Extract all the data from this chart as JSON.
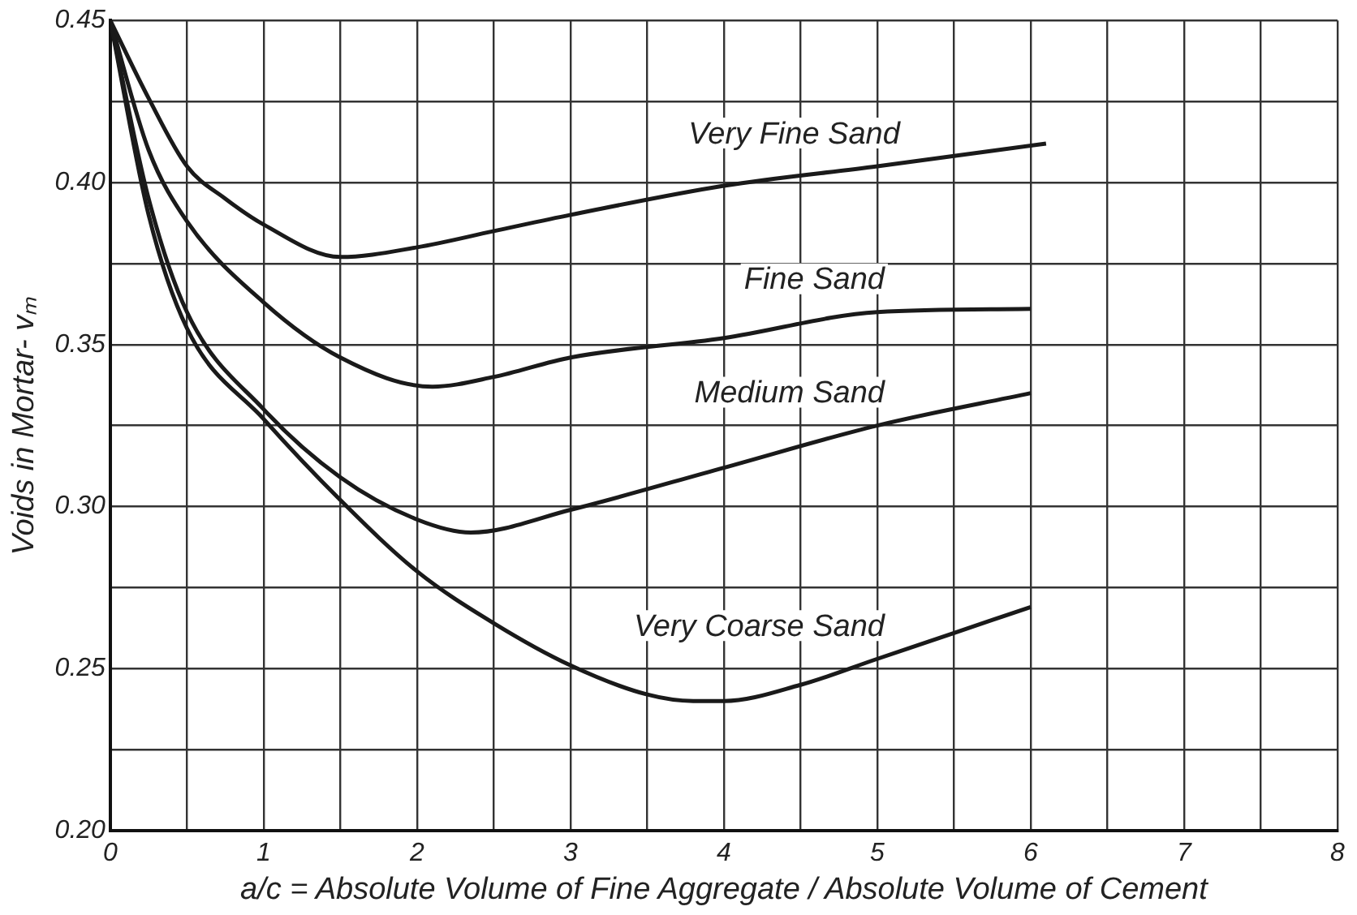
{
  "chart_data": {
    "type": "line",
    "xlabel": "a/c = Absolute Volume of Fine Aggregate / Absolute Volume of Cement",
    "ylabel": "Voids in Mortar- vₘ",
    "xlim": [
      0,
      8
    ],
    "ylim": [
      0.2,
      0.45
    ],
    "xticks": [
      0,
      {
        "value": 0.5,
        "label": null
      },
      1,
      {
        "value": 1.5,
        "label": null
      },
      2,
      {
        "value": 2.5,
        "label": null
      },
      3,
      {
        "value": 3.5,
        "label": null
      },
      4,
      {
        "value": 4.5,
        "label": null
      },
      5,
      {
        "value": 5.5,
        "label": null
      },
      6,
      {
        "value": 6.5,
        "label": null
      },
      7,
      {
        "value": 7.5,
        "label": null
      },
      8
    ],
    "yticks": [
      {
        "value": 0.2,
        "label": "0.20"
      },
      {
        "value": 0.225,
        "label": null
      },
      {
        "value": 0.25,
        "label": "0.25"
      },
      {
        "value": 0.275,
        "label": null
      },
      {
        "value": 0.3,
        "label": "0.30"
      },
      {
        "value": 0.325,
        "label": null
      },
      {
        "value": 0.35,
        "label": "0.35"
      },
      {
        "value": 0.375,
        "label": null
      },
      {
        "value": 0.4,
        "label": "0.40"
      },
      {
        "value": 0.425,
        "label": null
      },
      {
        "value": 0.45,
        "label": "0.45"
      }
    ],
    "grid": true,
    "marker": "none",
    "line_style": "solid",
    "series": [
      {
        "name": "Very Fine Sand",
        "color": "#1a1a1a",
        "x": [
          0,
          0.25,
          0.5,
          0.75,
          1,
          1.5,
          2,
          2.5,
          3,
          4,
          5,
          6.1
        ],
        "values": [
          0.45,
          0.426,
          0.405,
          0.395,
          0.387,
          0.377,
          0.38,
          0.385,
          0.39,
          0.399,
          0.405,
          0.412
        ]
      },
      {
        "name": "Fine Sand",
        "color": "#1a1a1a",
        "x": [
          0,
          0.25,
          0.5,
          1,
          1.5,
          2.1,
          2.5,
          3,
          4,
          5,
          6
        ],
        "values": [
          0.45,
          0.41,
          0.388,
          0.363,
          0.346,
          0.337,
          0.34,
          0.346,
          0.352,
          0.36,
          0.361
        ]
      },
      {
        "name": "Medium Sand",
        "color": "#1a1a1a",
        "x": [
          0,
          0.25,
          0.5,
          1,
          1.5,
          2,
          2.35,
          3,
          4,
          5,
          6
        ],
        "values": [
          0.45,
          0.395,
          0.36,
          0.33,
          0.309,
          0.296,
          0.292,
          0.299,
          0.312,
          0.325,
          0.335
        ]
      },
      {
        "name": "Very Coarse Sand",
        "color": "#1a1a1a",
        "x": [
          0,
          0.25,
          0.5,
          1,
          1.5,
          2,
          2.5,
          3,
          3.5,
          3.8,
          4,
          4.5,
          5,
          5.5,
          6
        ],
        "values": [
          0.45,
          0.39,
          0.355,
          0.327,
          0.302,
          0.28,
          0.264,
          0.251,
          0.242,
          0.24,
          0.24,
          0.245,
          0.253,
          0.261,
          0.269
        ]
      }
    ]
  }
}
